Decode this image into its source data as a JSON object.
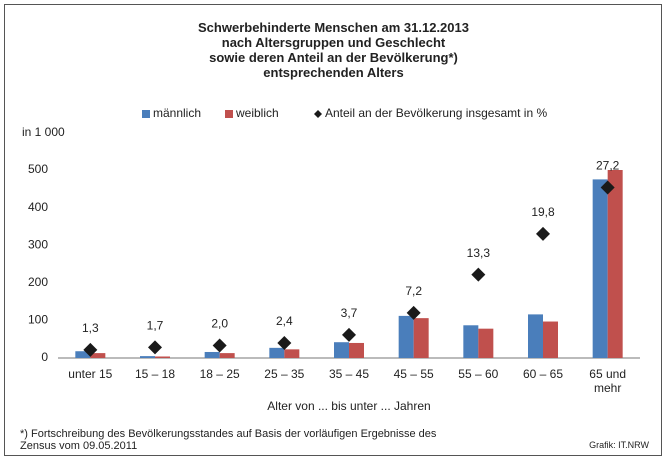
{
  "chart_data": {
    "type": "bar",
    "title": "Schwerbehinderte Menschen am 31.12.2013\nnach Altersgruppen und Geschlecht\nsowie deren Anteil an der Bevölkerung*)\nentsprechenden Alters",
    "y_unit_label": "in 1 000",
    "x_label": "Alter von ... bis unter ... Jahren",
    "categories": [
      "unter 15",
      "15 – 18",
      "18 – 25",
      "25 – 35",
      "35 – 45",
      "45 – 55",
      "55 – 60",
      "60 – 65",
      "65 und\nmehr"
    ],
    "series": [
      {
        "name": "männlich",
        "color": "#4a7ebb",
        "values": [
          18,
          5,
          16,
          27,
          42,
          112,
          87,
          116,
          475
        ]
      },
      {
        "name": "weiblich",
        "color": "#c0504d",
        "values": [
          13,
          4,
          13,
          23,
          40,
          106,
          78,
          97,
          500
        ]
      },
      {
        "name": "Anteil an der Bevölkerung insgesamt in %",
        "color": "#1a1a1a",
        "marker": "diamond",
        "axis": "y2",
        "values": [
          1.3,
          1.7,
          2.0,
          2.4,
          3.7,
          7.2,
          13.3,
          19.8,
          27.2
        ],
        "value_labels": [
          "1,3",
          "1,7",
          "2,0",
          "2,4",
          "3,7",
          "7,2",
          "13,3",
          "19,8",
          "27,2"
        ]
      }
    ],
    "ylim": [
      0,
      500
    ],
    "yticks": [
      0,
      100,
      200,
      300,
      400,
      500
    ],
    "y2lim": [
      0,
      30
    ],
    "grid": false,
    "legend": "top",
    "footnote": "*) Fortschreibung des Bevölkerungsstandes auf Basis der vorläufigen Ergebnisse des\nZensus vom 09.05.2011",
    "source": "Grafik: IT.NRW"
  }
}
